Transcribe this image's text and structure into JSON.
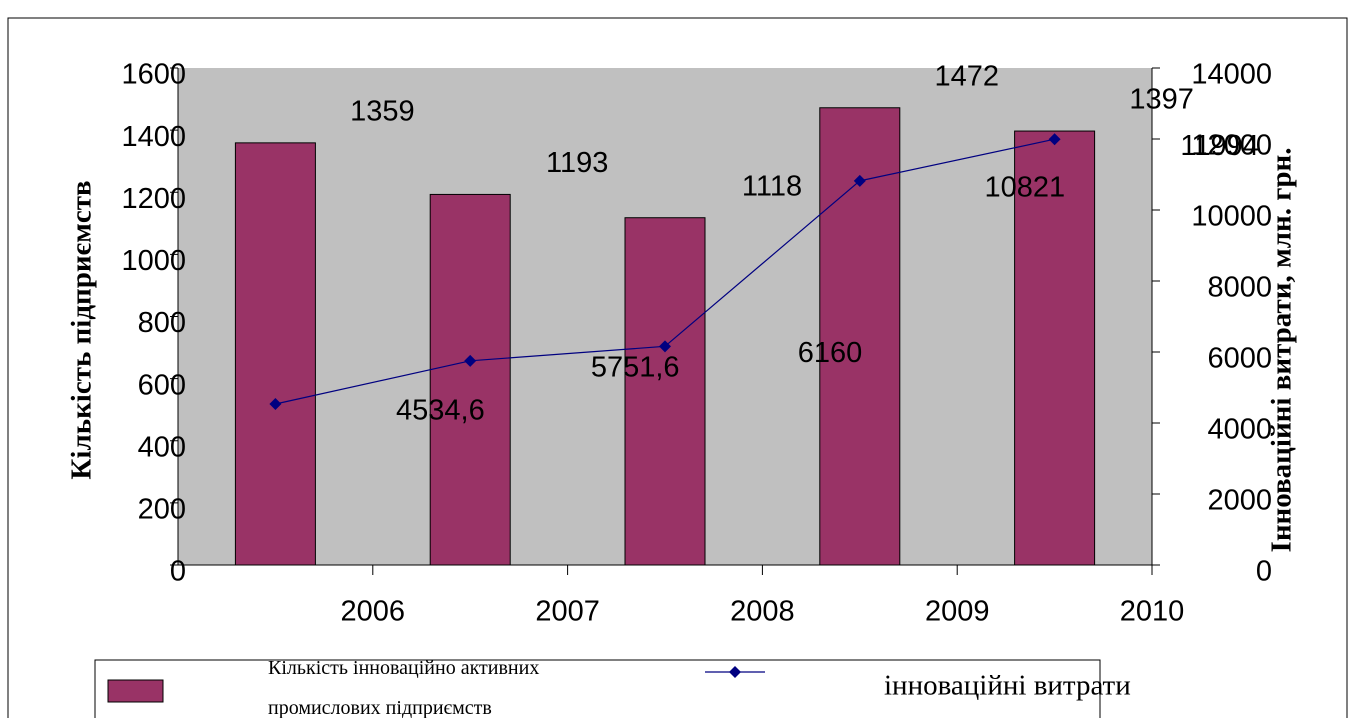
{
  "chart_data": {
    "type": "bar-line",
    "categories": [
      "2006",
      "2007",
      "2008",
      "2009",
      "2010"
    ],
    "series": [
      {
        "name": "Кількість інноваційно активних промислових підприємств",
        "type": "bar",
        "color": "#993366",
        "values": [
          1359,
          1193,
          1118,
          1472,
          1397
        ]
      },
      {
        "name": "інноваційні витрати",
        "type": "line",
        "axis": "y2",
        "color": "#000080",
        "values": [
          4534.6,
          5751.6,
          6160,
          10821,
          11994
        ],
        "value_labels": [
          "4534,6",
          "5751,6",
          "6160",
          "10821",
          "11994"
        ]
      }
    ],
    "ylabel": "Кількість підприємств",
    "y2label": "Інноваційні витрати, млн. грн.",
    "ylim": [
      0,
      1600
    ],
    "yticks": [
      0,
      200,
      400,
      600,
      800,
      1000,
      1200,
      1400,
      1600
    ],
    "y2lim": [
      0,
      14000
    ],
    "y2ticks": [
      0,
      2000,
      4000,
      6000,
      8000,
      10000,
      12000,
      14000
    ],
    "plot_background": "#c0c0c0",
    "legend": "bottom"
  }
}
